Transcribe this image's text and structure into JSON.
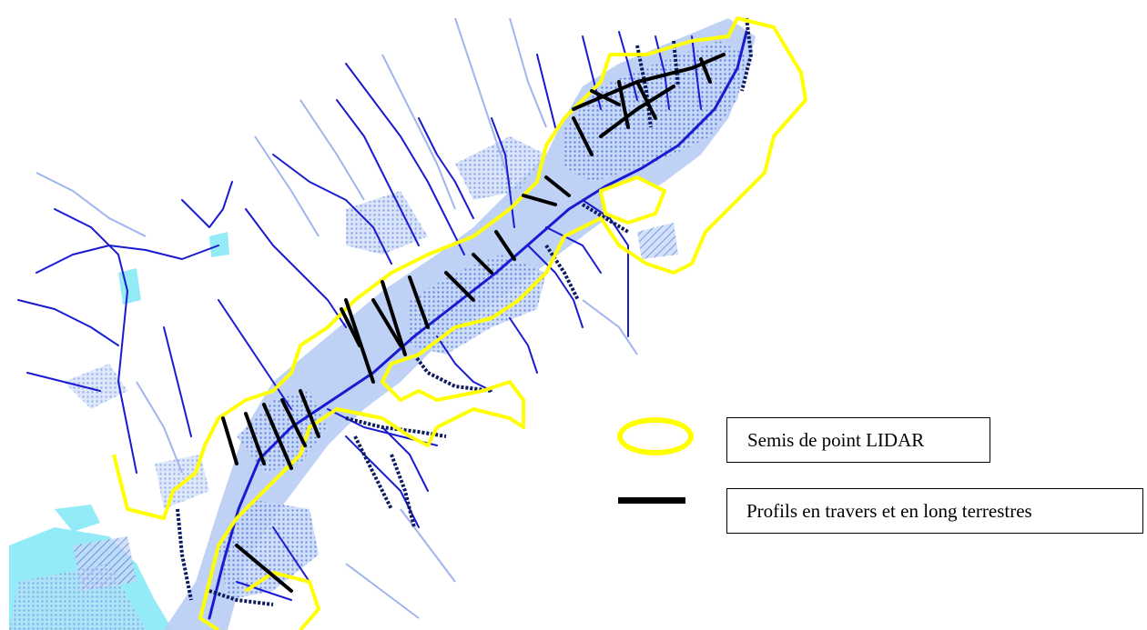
{
  "legend": {
    "lidar": {
      "label": "Semis de point LIDAR",
      "color": "#ffff00",
      "symbol": "yellow-ellipse-outline"
    },
    "profils": {
      "label": "Profils en travers et en long terrestres",
      "color": "#000000",
      "symbol": "thick-black-line"
    }
  },
  "map_colors": {
    "river": "#1a1ad0",
    "river_light": "#8fa8e8",
    "floodplain": "#b8cdf5",
    "floodplain_dotted": "#6f8ee0",
    "water_body": "#7fe8f5",
    "lidar_outline": "#ffff00",
    "profile": "#000000"
  }
}
